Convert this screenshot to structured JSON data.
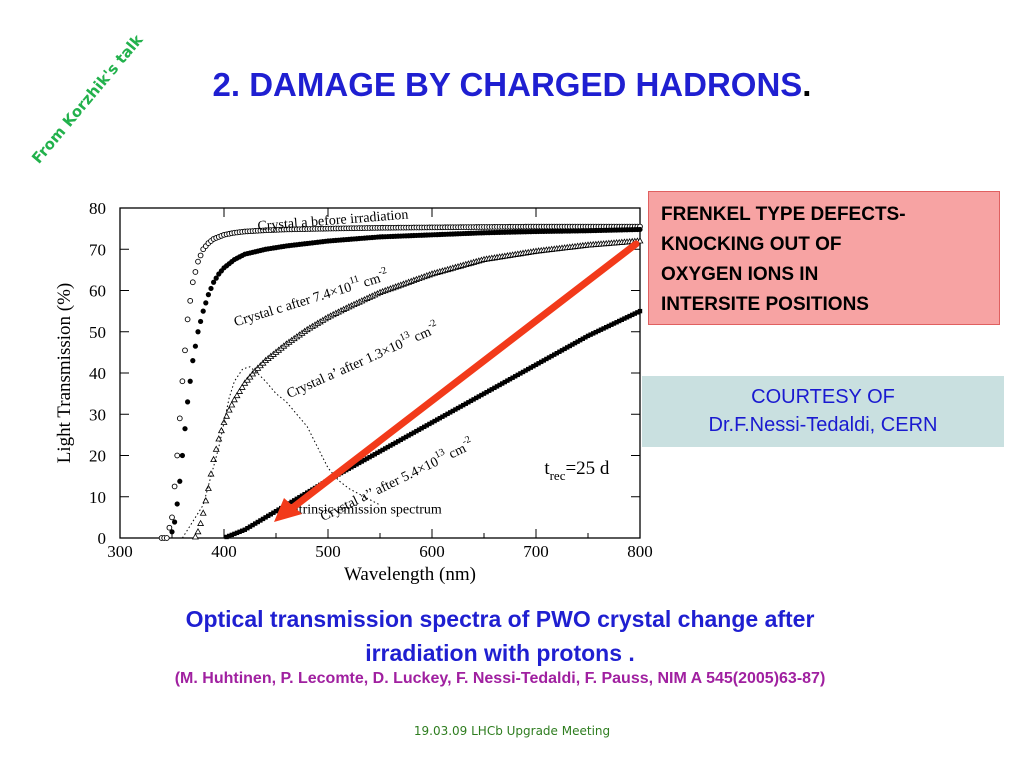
{
  "slide": {
    "stamp": "From Korzhik's talk",
    "title": "2. DAMAGE BY  CHARGED HADRONS",
    "title_dot": ".",
    "note_lines": [
      "FRENKEL TYPE DEFECTS-",
      "KNOCKING OUT OF",
      "OXYGEN IONS IN",
      "INTERSITE POSITIONS"
    ],
    "credit_lines": [
      "COURTESY OF",
      "Dr.F.Nessi-Tedaldi, CERN"
    ],
    "caption_lines": [
      "Optical transmission spectra of PWO crystal change after",
      "irradiation with protons ."
    ],
    "reference": "(M. Huhtinen, P. Lecomte, D. Luckey, F. Nessi-Tedaldi, F. Pauss, NIM A 545(2005)63-87)",
    "footer": "19.03.09  LHCb Upgrade Meeting",
    "colors": {
      "title": "#1f1fd1",
      "stamp": "#22b14c",
      "note_bg": "#f7a3a3",
      "credit_bg": "#c9e0e0",
      "reference": "#a020a0",
      "arrow": "#f23a1a"
    }
  },
  "chart_data": {
    "type": "scatter",
    "xlabel": "Wavelength (nm)",
    "ylabel": "Light Transmission (%)",
    "xlim": [
      300,
      800
    ],
    "ylim": [
      0,
      80
    ],
    "xticks": [
      300,
      400,
      500,
      600,
      700,
      800
    ],
    "yticks": [
      0,
      10,
      20,
      30,
      40,
      50,
      60,
      70,
      80
    ],
    "grid": false,
    "annotation": "t_rec=25 d",
    "series": [
      {
        "label_parts": [
          "Crystal a before irradiation"
        ],
        "marker": "open-circle",
        "x": [
          330,
          345,
          350,
          355,
          360,
          365,
          370,
          375,
          380,
          385,
          390,
          395,
          400,
          410,
          420,
          440,
          460,
          500,
          550,
          600,
          650,
          700,
          750,
          800
        ],
        "y": [
          0,
          0,
          5,
          20,
          38,
          53,
          62,
          67,
          70,
          71.5,
          72.5,
          73,
          73.5,
          74,
          74.3,
          74.6,
          74.8,
          75,
          75.2,
          75.3,
          75.4,
          75.5,
          75.5,
          75.5
        ]
      },
      {
        "label_parts": [
          "Crystal c after 7.4×10",
          "11",
          " cm",
          "-2"
        ],
        "marker": "filled-circle",
        "x": [
          340,
          348,
          352,
          356,
          360,
          365,
          370,
          375,
          380,
          385,
          390,
          395,
          400,
          410,
          420,
          440,
          460,
          500,
          550,
          600,
          650,
          700,
          750,
          800
        ],
        "y": [
          0,
          0,
          3,
          10,
          20,
          33,
          43,
          50,
          55,
          59,
          62,
          64,
          65.5,
          67.5,
          68.8,
          70,
          70.8,
          72,
          73,
          73.5,
          74,
          74.3,
          74.5,
          74.8
        ]
      },
      {
        "label_parts": [
          "Crystal a’ after 1.3×10",
          "13",
          " cm",
          "-2"
        ],
        "marker": "open-triangle",
        "x": [
          365,
          372,
          376,
          380,
          385,
          390,
          395,
          400,
          405,
          410,
          420,
          430,
          440,
          450,
          460,
          480,
          500,
          520,
          550,
          600,
          650,
          700,
          750,
          800
        ],
        "y": [
          0,
          0,
          2,
          6,
          12,
          19,
          24,
          28,
          31,
          33.5,
          37.5,
          40.5,
          43,
          45,
          47,
          50.5,
          53.5,
          56,
          59.5,
          64,
          67.5,
          69.5,
          71,
          72
        ]
      },
      {
        "label_parts": [
          "Crystal a’’ after 5.4×10",
          "13",
          " cm",
          "-2"
        ],
        "marker": "filled-square",
        "x": [
          400,
          410,
          420,
          440,
          460,
          480,
          500,
          550,
          600,
          650,
          700,
          750,
          800
        ],
        "y": [
          0,
          1,
          2,
          5,
          8,
          11,
          14,
          21,
          28,
          35,
          42,
          49,
          55
        ]
      },
      {
        "label_parts": [
          "Intrinsic emission spectrum"
        ],
        "marker": "dotted-line",
        "x": [
          360,
          380,
          395,
          405,
          410,
          418,
          425,
          432,
          440,
          450,
          460,
          470,
          480,
          490,
          500,
          510,
          520,
          535,
          550
        ],
        "y": [
          0,
          8,
          22,
          34,
          38,
          41,
          41.5,
          40,
          38,
          35,
          33,
          30,
          27,
          22,
          17,
          14,
          12,
          10,
          8
        ]
      }
    ]
  }
}
